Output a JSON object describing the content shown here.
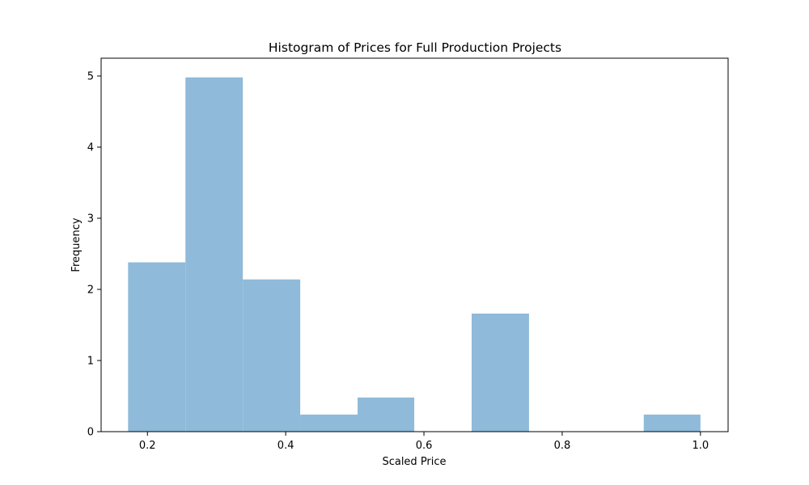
{
  "chart_data": {
    "type": "bar",
    "title": "Histogram of Prices for Full Production Projects",
    "xlabel": "Scaled Price",
    "ylabel": "Frequency",
    "bar_color": "#8fbad9",
    "xlim": [
      0.133,
      1.04
    ],
    "ylim": [
      0,
      5.25
    ],
    "x_ticks": [
      0.2,
      0.4,
      0.6,
      0.8,
      1.0
    ],
    "x_tick_labels": [
      "0.2",
      "0.4",
      "0.6",
      "0.8",
      "1.0"
    ],
    "y_ticks": [
      0,
      1,
      2,
      3,
      4,
      5
    ],
    "y_tick_labels": [
      "0",
      "1",
      "2",
      "3",
      "4",
      "5"
    ],
    "bin_edges": [
      0.172,
      0.255,
      0.338,
      0.421,
      0.504,
      0.586,
      0.669,
      0.752,
      0.835,
      0.918,
      1.0
    ],
    "values": [
      2.38,
      4.98,
      2.14,
      0.24,
      0.48,
      0,
      1.66,
      0,
      0,
      0.24
    ],
    "grid": false,
    "legend": "none"
  }
}
